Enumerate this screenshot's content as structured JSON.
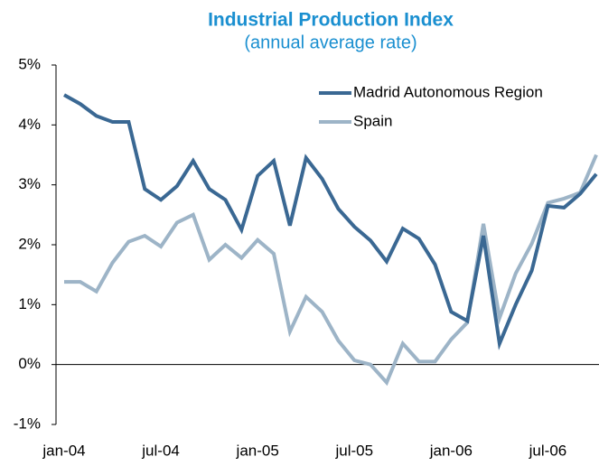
{
  "chart_data": {
    "type": "line",
    "title": "Industrial Production Index",
    "subtitle": "(annual average rate)",
    "categories": [
      "jan-04",
      null,
      null,
      null,
      null,
      null,
      "jul-04",
      null,
      null,
      null,
      null,
      null,
      "jan-05",
      null,
      null,
      null,
      null,
      null,
      "jul-05",
      null,
      null,
      null,
      null,
      null,
      "jan-06",
      null,
      null,
      null,
      null,
      null,
      "jul-06",
      null,
      null,
      null
    ],
    "series": [
      {
        "name": "Madrid Autonomous Region",
        "color": "#3a6893",
        "values": [
          4.5,
          4.35,
          4.15,
          4.05,
          4.05,
          2.93,
          2.75,
          2.98,
          3.4,
          2.93,
          2.75,
          2.25,
          3.15,
          3.4,
          2.32,
          3.45,
          3.1,
          2.6,
          2.3,
          2.07,
          1.72,
          2.27,
          2.1,
          1.67,
          0.88,
          0.73,
          2.15,
          0.35,
          1.0,
          1.57,
          2.65,
          2.62,
          2.85,
          3.18
        ]
      },
      {
        "name": "Spain",
        "color": "#9db4c7",
        "values": [
          1.38,
          1.38,
          1.22,
          1.7,
          2.05,
          2.15,
          1.97,
          2.37,
          2.5,
          1.75,
          2.0,
          1.78,
          2.08,
          1.85,
          0.55,
          1.13,
          0.88,
          0.4,
          0.07,
          0.0,
          -0.3,
          0.35,
          0.05,
          0.05,
          0.42,
          0.7,
          2.35,
          0.78,
          1.52,
          2.02,
          2.7,
          2.77,
          2.87,
          3.5
        ]
      }
    ],
    "ylim": [
      -1,
      5
    ],
    "yticks": [
      {
        "value": -1,
        "label": "-1%"
      },
      {
        "value": 0,
        "label": "0%"
      },
      {
        "value": 1,
        "label": "1%"
      },
      {
        "value": 2,
        "label": "2%"
      },
      {
        "value": 3,
        "label": "3%"
      },
      {
        "value": 4,
        "label": "4%"
      },
      {
        "value": 5,
        "label": "5%"
      }
    ],
    "grid": false,
    "legend": "top-right"
  }
}
